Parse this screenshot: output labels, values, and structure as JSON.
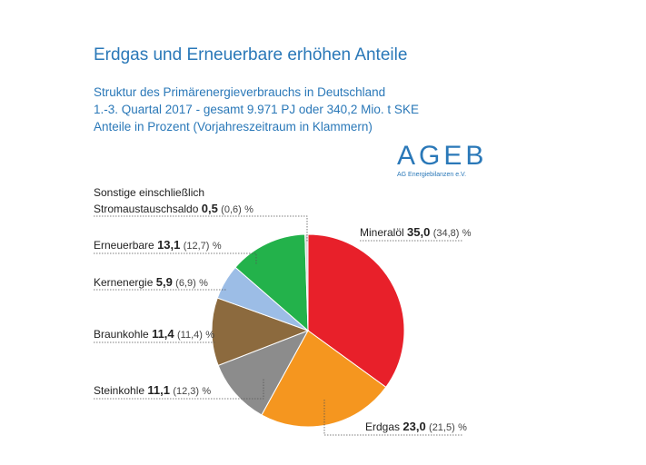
{
  "header": {
    "title": "Erdgas und Erneuerbare erhöhen Anteile",
    "subtitle1": "Struktur des Primärenergieverbrauchs in Deutschland",
    "subtitle2": "1.-3. Quartal 2017 - gesamt 9.971 PJ oder 340,2 Mio. t SKE",
    "subtitle3": "Anteile in Prozent (Vorjahreszeitraum in Klammern)"
  },
  "logo": {
    "name": "AGEB",
    "tagline": "AG Energiebilanzen e.V."
  },
  "chart_data": {
    "type": "pie",
    "title": "Struktur des Primärenergieverbrauchs in Deutschland",
    "slices": [
      {
        "label": "Mineralöl",
        "value": 35.0,
        "value_text": "35,0",
        "prev_text": "(34,8)",
        "unit": "%",
        "color": "#e8202a"
      },
      {
        "label": "Erdgas",
        "value": 23.0,
        "value_text": "23,0",
        "prev_text": "(21,5)",
        "unit": "%",
        "color": "#f5961f"
      },
      {
        "label": "Steinkohle",
        "value": 11.1,
        "value_text": "11,1",
        "prev_text": "(12,3)",
        "unit": "%",
        "color": "#8c8c8c"
      },
      {
        "label": "Braunkohle",
        "value": 11.4,
        "value_text": "11,4",
        "prev_text": "(11,4)",
        "unit": "%",
        "color": "#8c6a3e"
      },
      {
        "label": "Kernenergie",
        "value": 5.9,
        "value_text": "5,9",
        "prev_text": "(6,9)",
        "unit": "%",
        "color": "#9cbde6"
      },
      {
        "label": "Erneuerbare",
        "value": 13.1,
        "value_text": "13,1",
        "prev_text": "(12,7)",
        "unit": "%",
        "color": "#23b24b"
      },
      {
        "label": "Sonstige einschließlich",
        "label2": "Stromaustauschsaldo",
        "value": 0.5,
        "value_text": "0,5",
        "prev_text": "(0,6)",
        "unit": "%",
        "color": "#d9d9d9"
      }
    ]
  }
}
